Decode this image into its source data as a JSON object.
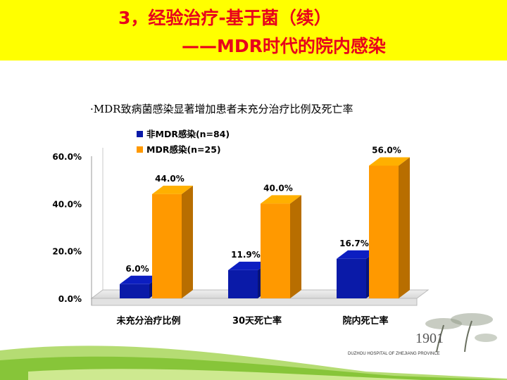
{
  "header": {
    "title_line1": "3，经验治疗-基于菌（续）",
    "title_line2": "——MDR时代的院内感染"
  },
  "subtitle": "·MDR致病菌感染显著增加患者未充分治疗比例及死亡率",
  "logo": {
    "year": "1901",
    "caption": "DUZHOU HOSPITAL OF ZHEJIANG PROVINCE"
  },
  "colors": {
    "title": "#e8001c",
    "band": "#ffff00",
    "series_blue": "#0a1aa8",
    "series_orange": "#ff9900"
  },
  "chart_data": {
    "type": "bar",
    "categories": [
      "未充分治疗比例",
      "30天死亡率",
      "院内死亡率"
    ],
    "series": [
      {
        "name": "非MDR感染(n=84)",
        "values": [
          6.0,
          11.9,
          16.7
        ],
        "labels": [
          "6.0%",
          "11.9%",
          "16.7%"
        ],
        "color": "#0a1aa8"
      },
      {
        "name": "MDR感染(n=25)",
        "values": [
          44.0,
          40.0,
          56.0
        ],
        "labels": [
          "44.0%",
          "40.0%",
          "56.0%"
        ],
        "color": "#ff9900"
      }
    ],
    "yticks": [
      "0.0%",
      "20.0%",
      "40.0%",
      "60.0%"
    ],
    "ytick_values": [
      0,
      20,
      40,
      60
    ],
    "ylim": [
      0,
      60
    ],
    "grid": false,
    "legend": "top-left",
    "style": "3d"
  }
}
